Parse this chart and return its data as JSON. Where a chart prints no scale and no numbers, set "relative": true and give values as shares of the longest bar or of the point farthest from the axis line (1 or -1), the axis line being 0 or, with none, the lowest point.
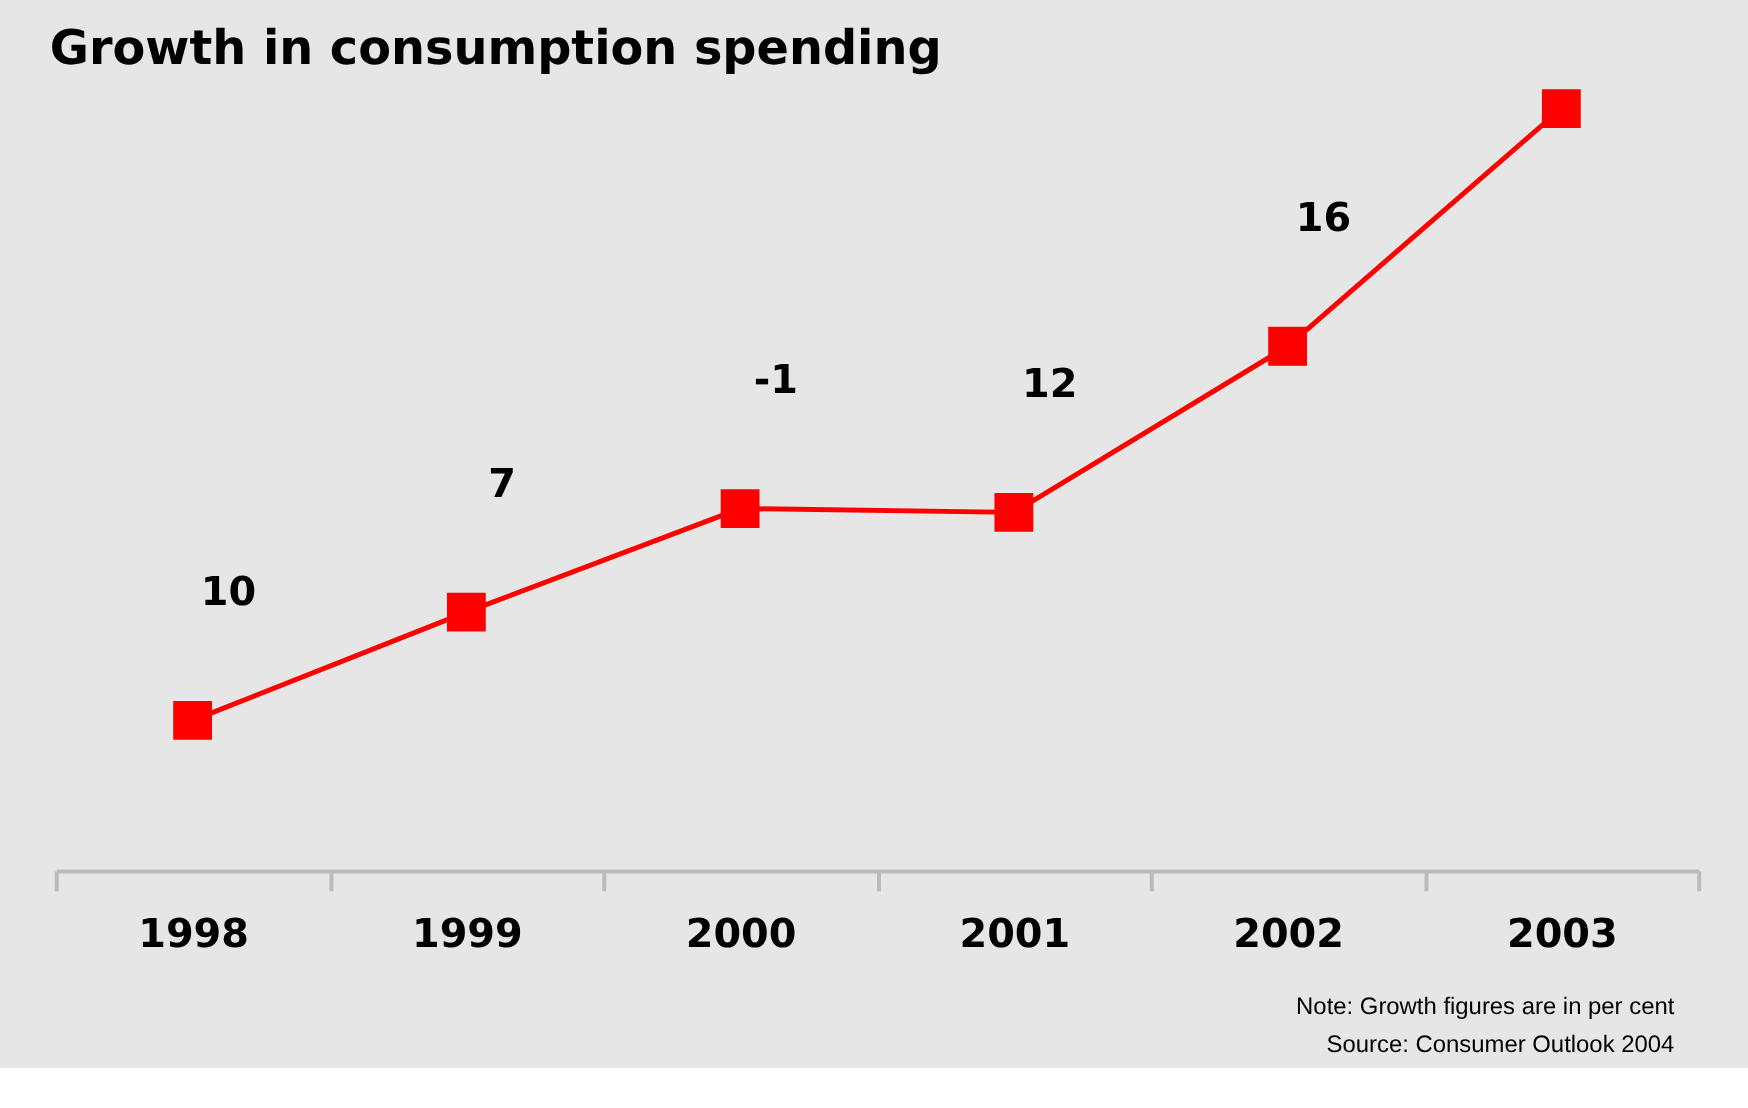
{
  "chart_data": {
    "type": "line",
    "title": "Growth in consumption spending",
    "categories": [
      "1998",
      "1999",
      "2000",
      "2001",
      "2002",
      "2003"
    ],
    "relative": true,
    "series": [
      {
        "color": "#ff0000",
        "values": [
          0.197,
          0.339,
          0.475,
          0.47,
          0.688,
          1
        ]
      }
    ],
    "marker": "square",
    "grid": false,
    "legend": false,
    "annotations": [
      "10",
      "7",
      "-1",
      "12",
      "16",
      "Note: Growth figures are in per cent",
      "Source: Consumer Outlook 2004"
    ]
  }
}
